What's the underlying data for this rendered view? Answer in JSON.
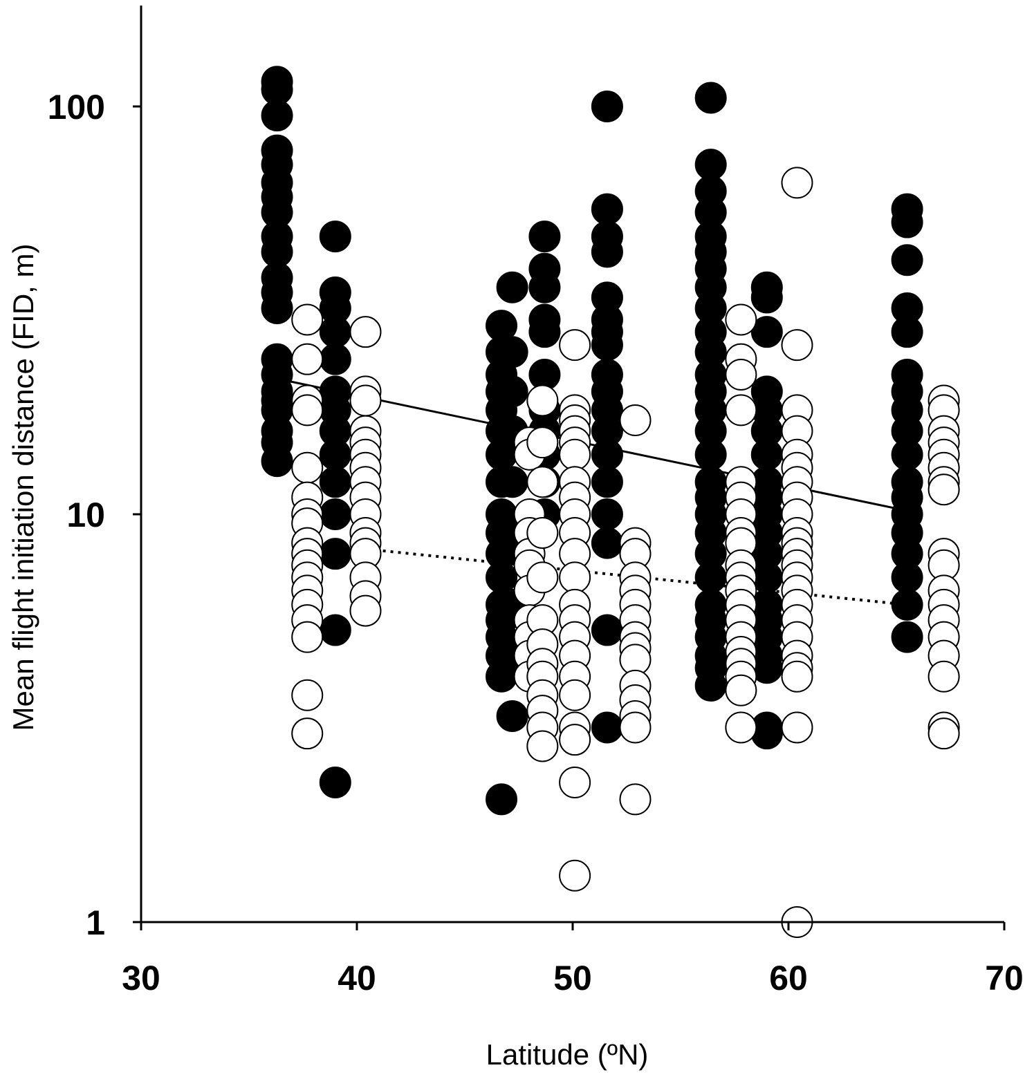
{
  "chart_data": {
    "type": "scatter",
    "title": "",
    "xlabel": "Latitude (ºN)",
    "ylabel": "Mean flight initiation distance (FID, m)",
    "x_scale": "linear",
    "y_scale": "log",
    "xlim": [
      30,
      70
    ],
    "ylim": [
      1,
      180
    ],
    "x_ticks": [
      30,
      40,
      50,
      60,
      70
    ],
    "x_tick_labels": [
      "30",
      "40",
      "50",
      "60",
      "70"
    ],
    "y_ticks": [
      1,
      10,
      100
    ],
    "y_tick_labels": [
      "1",
      "10",
      "100"
    ],
    "grid": false,
    "legend": "none",
    "series": [
      {
        "marker": "filled-circle",
        "color": "#000000",
        "points": [
          {
            "x": 36.3,
            "y": [
              115,
              110,
              95,
              78,
              72,
              65,
              60,
              55,
              48,
              44,
              38,
              35,
              32,
              24,
              22,
              20,
              19,
              18,
              16,
              15,
              13.5
            ]
          },
          {
            "x": 39.0,
            "y": [
              48,
              35,
              32,
              28,
              24,
              20,
              18,
              16,
              14,
              12,
              10,
              8.0,
              5.2,
              2.2
            ]
          },
          {
            "x": 46.7,
            "y": [
              29,
              25,
              22,
              20,
              18,
              16,
              14,
              12,
              10,
              9.0,
              8.0,
              7.0,
              6.0,
              5.5,
              5.0,
              4.5,
              4.0,
              2.0
            ]
          },
          {
            "x": 47.2,
            "y": [
              36,
              25,
              20,
              16,
              12,
              9.0,
              6.0,
              4.5,
              3.2
            ]
          },
          {
            "x": 48.7,
            "y": [
              48,
              40,
              36,
              30,
              28,
              22,
              18,
              16,
              14,
              12,
              10
            ]
          },
          {
            "x": 51.6,
            "y": [
              100,
              56,
              48,
              44,
              34,
              30,
              28,
              26,
              22,
              20,
              18,
              16,
              14,
              12,
              10,
              8.5,
              5.2,
              3.0
            ]
          },
          {
            "x": 56.4,
            "y": [
              105,
              72,
              62,
              55,
              48,
              44,
              40,
              36,
              32,
              28,
              25,
              22,
              20,
              18,
              16,
              14,
              12,
              11,
              10,
              9.0,
              8.0,
              7.0,
              6.0,
              5.5,
              5.0,
              4.5,
              4.2,
              3.8
            ]
          },
          {
            "x": 59.0,
            "y": [
              36,
              34,
              28,
              20,
              18,
              16,
              14,
              12,
              11,
              10,
              9.0,
              8.0,
              7.0,
              6.0,
              5.5,
              5.0,
              4.5,
              4.2,
              3.0,
              2.9
            ]
          },
          {
            "x": 65.5,
            "y": [
              56,
              52,
              42,
              32,
              28,
              22,
              20,
              18,
              16,
              14,
              12,
              11,
              10,
              9.0,
              8.0,
              7.0,
              6.0,
              5.0
            ]
          }
        ]
      },
      {
        "marker": "open-circle",
        "color": "#ffffff",
        "points": [
          {
            "x": 37.7,
            "y": [
              30,
              24,
              19,
              18,
              13,
              11,
              10,
              9.5,
              8.5,
              8.0,
              7.5,
              7.0,
              6.5,
              6.0,
              5.5,
              5.0,
              3.6,
              2.9
            ]
          },
          {
            "x": 40.4,
            "y": [
              28,
              20,
              19,
              16,
              15,
              14,
              13,
              12,
              11,
              10,
              9.0,
              8.5,
              8.0,
              7.0,
              6.3,
              5.8
            ]
          },
          {
            "x": 48.0,
            "y": [
              15,
              14,
              10,
              9.0,
              8.0,
              7.5,
              6.5,
              5.5,
              5.0,
              4.5,
              4.0
            ]
          },
          {
            "x": 48.6,
            "y": [
              19,
              15,
              12,
              9.0,
              7.0,
              5.5,
              4.8,
              4.3,
              4.0,
              3.6,
              3.3,
              3.0,
              2.7
            ]
          },
          {
            "x": 50.1,
            "y": [
              26,
              18,
              17,
              16,
              15,
              14,
              12,
              11,
              10,
              9.0,
              8.0,
              7.0,
              6.0,
              5.5,
              5.0,
              4.5,
              4.0,
              3.6,
              3.0,
              2.8,
              2.2,
              1.3
            ]
          },
          {
            "x": 52.9,
            "y": [
              17,
              8.5,
              8.0,
              7.0,
              6.5,
              6.0,
              5.5,
              5.0,
              4.7,
              4.4,
              3.8,
              3.5,
              3.2,
              3.0,
              2.0
            ]
          },
          {
            "x": 57.8,
            "y": [
              30,
              24,
              22,
              18,
              12,
              11,
              10,
              9.0,
              8.5,
              7.5,
              7.0,
              6.5,
              6.0,
              5.5,
              5.0,
              4.6,
              4.3,
              4.0,
              3.7,
              3.0
            ]
          },
          {
            "x": 60.4,
            "y": [
              65,
              26,
              18,
              16,
              14,
              13,
              12,
              11,
              10,
              9.0,
              8.5,
              8.0,
              7.5,
              7.0,
              6.5,
              6.0,
              5.5,
              5.0,
              4.5,
              4.2,
              4.0,
              3.0,
              1.0
            ]
          },
          {
            "x": 67.2,
            "y": [
              19,
              18,
              16,
              15,
              14,
              13,
              12,
              11.5,
              8.0,
              7.5,
              6.5,
              6.0,
              5.5,
              5.0,
              4.5,
              4.0,
              3.0,
              2.9
            ]
          }
        ]
      }
    ],
    "trend_lines": [
      {
        "style": "solid",
        "from": {
          "x": 36.3,
          "y": 21.5
        },
        "to": {
          "x": 65.5,
          "y": 10.2
        }
      },
      {
        "style": "dotted",
        "from": {
          "x": 37.7,
          "y": 8.5
        },
        "to": {
          "x": 65.5,
          "y": 6.0
        }
      }
    ]
  }
}
